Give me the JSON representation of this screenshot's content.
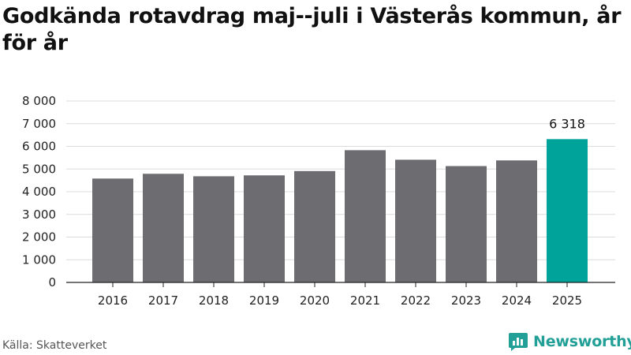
{
  "title": "Godkända rotavdrag maj--juli i Västerås kommun, år för år",
  "source": "Källa: Skatteverket",
  "brand": {
    "name": "Newsworthy",
    "icon": "newsworthy-logo-icon"
  },
  "colors": {
    "bar": "#6d6c70",
    "highlight": "#00a39a",
    "grid": "#dcdcdc",
    "axis": "#222222",
    "brand": "#22a097"
  },
  "chart_data": {
    "type": "bar",
    "categories": [
      "2016",
      "2017",
      "2018",
      "2019",
      "2020",
      "2021",
      "2022",
      "2023",
      "2024",
      "2025"
    ],
    "values": [
      4580,
      4790,
      4680,
      4720,
      4910,
      5830,
      5410,
      5130,
      5380,
      6318
    ],
    "highlight_index": 9,
    "data_labels": [
      {
        "index": 9,
        "text": "6 318"
      }
    ],
    "ylim": [
      0,
      8000
    ],
    "yticks": [
      0,
      1000,
      2000,
      3000,
      4000,
      5000,
      6000,
      7000,
      8000
    ],
    "ytick_labels": [
      "0",
      "1 000",
      "2 000",
      "3 000",
      "4 000",
      "5 000",
      "6 000",
      "7 000",
      "8 000"
    ],
    "grid": true,
    "xlabel": "",
    "ylabel": ""
  }
}
